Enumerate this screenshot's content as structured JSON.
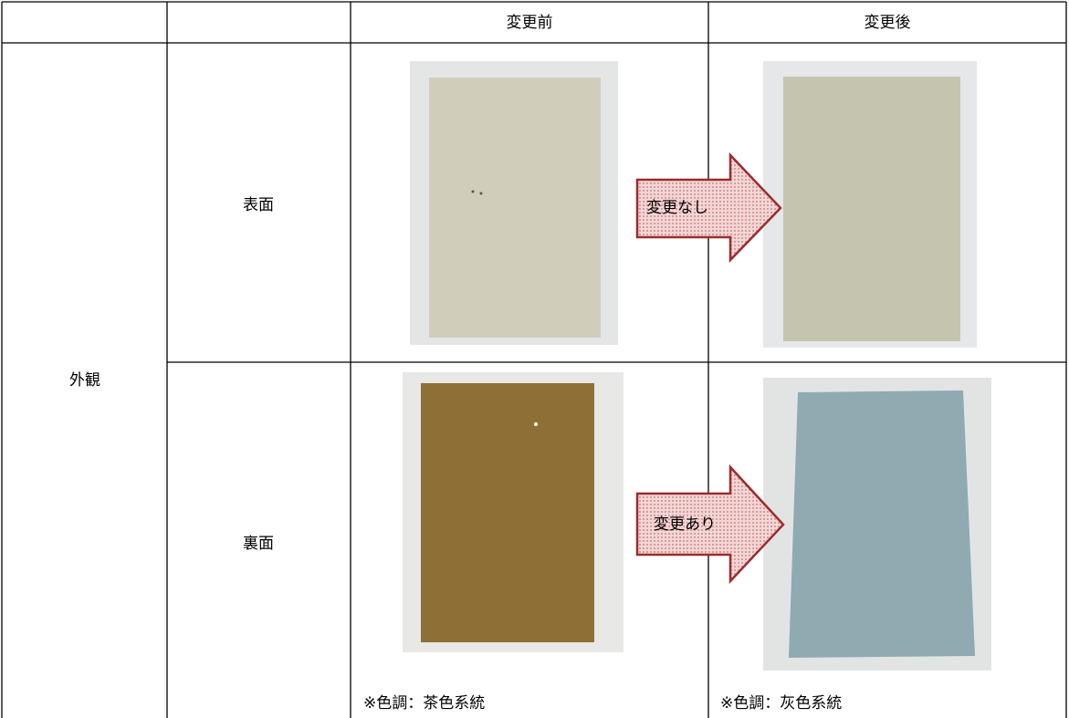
{
  "header": {
    "before": "変更前",
    "after": "変更後"
  },
  "section": "外観",
  "rows": [
    {
      "label": "表面",
      "change": "変更なし"
    },
    {
      "label": "裏面",
      "change": "変更あり",
      "before_note": "※色調：茶色系統",
      "after_note": "※色調：灰色系統"
    }
  ]
}
